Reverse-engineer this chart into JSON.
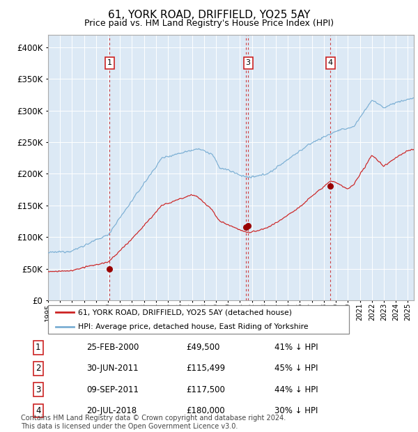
{
  "title": "61, YORK ROAD, DRIFFIELD, YO25 5AY",
  "subtitle": "Price paid vs. HM Land Registry's House Price Index (HPI)",
  "bg_color": "#dce9f5",
  "grid_color": "#ffffff",
  "hpi_line_color": "#7bafd4",
  "price_line_color": "#cc2222",
  "marker_color": "#990000",
  "vline_color": "#cc2222",
  "ylim": [
    0,
    420000
  ],
  "yticks": [
    0,
    50000,
    100000,
    150000,
    200000,
    250000,
    300000,
    350000,
    400000
  ],
  "xlim": [
    1995,
    2025.5
  ],
  "transactions": [
    {
      "num": 1,
      "date_str": "25-FEB-2000",
      "year": 2000.12,
      "price": 49500,
      "show_label": true
    },
    {
      "num": 2,
      "date_str": "30-JUN-2011",
      "year": 2011.49,
      "price": 115499,
      "show_label": false
    },
    {
      "num": 3,
      "date_str": "09-SEP-2011",
      "year": 2011.68,
      "price": 117500,
      "show_label": true
    },
    {
      "num": 4,
      "date_str": "20-JUL-2018",
      "year": 2018.55,
      "price": 180000,
      "show_label": true
    }
  ],
  "legend_items": [
    "61, YORK ROAD, DRIFFIELD, YO25 5AY (detached house)",
    "HPI: Average price, detached house, East Riding of Yorkshire"
  ],
  "footer": "Contains HM Land Registry data © Crown copyright and database right 2024.\nThis data is licensed under the Open Government Licence v3.0.",
  "table_rows": [
    [
      "1",
      "25-FEB-2000",
      "£49,500",
      "41% ↓ HPI"
    ],
    [
      "2",
      "30-JUN-2011",
      "£115,499",
      "45% ↓ HPI"
    ],
    [
      "3",
      "09-SEP-2011",
      "£117,500",
      "44% ↓ HPI"
    ],
    [
      "4",
      "20-JUL-2018",
      "£180,000",
      "30% ↓ HPI"
    ]
  ]
}
